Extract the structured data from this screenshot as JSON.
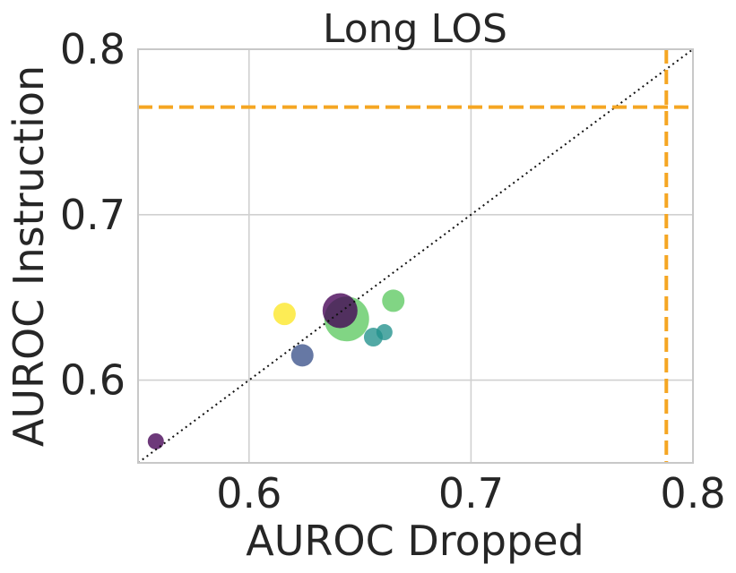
{
  "chart_data": {
    "type": "scatter",
    "title": "Long LOS",
    "xlabel": "AUROC Dropped",
    "ylabel": "AUROC Instruction",
    "xlim": [
      0.55,
      0.8
    ],
    "ylim": [
      0.55,
      0.8
    ],
    "xticks": [
      "0.6",
      "0.7",
      "0.8"
    ],
    "yticks": [
      "0.6",
      "0.7",
      "0.8"
    ],
    "xtick_values": [
      0.6,
      0.7,
      0.8
    ],
    "ytick_values": [
      0.6,
      0.7,
      0.8
    ],
    "grid": true,
    "diagonal": "y = x dotted black",
    "reference_lines": {
      "color": "#f5a623",
      "vertical_x": 0.788,
      "horizontal_y": 0.765,
      "style": "dashed"
    },
    "points": [
      {
        "x": 0.558,
        "y": 0.563,
        "size": "small",
        "color": "#440154"
      },
      {
        "x": 0.616,
        "y": 0.64,
        "size": "medium",
        "color": "#fde725"
      },
      {
        "x": 0.624,
        "y": 0.615,
        "size": "medium",
        "color": "#3b528b"
      },
      {
        "x": 0.644,
        "y": 0.637,
        "size": "xlarge",
        "color": "#5ec962"
      },
      {
        "x": 0.641,
        "y": 0.642,
        "size": "large",
        "color": "#440154"
      },
      {
        "x": 0.656,
        "y": 0.626,
        "size": "medium-small",
        "color": "#21918c"
      },
      {
        "x": 0.661,
        "y": 0.629,
        "size": "small",
        "color": "#21918c"
      },
      {
        "x": 0.665,
        "y": 0.648,
        "size": "medium",
        "color": "#5ec962"
      }
    ]
  }
}
